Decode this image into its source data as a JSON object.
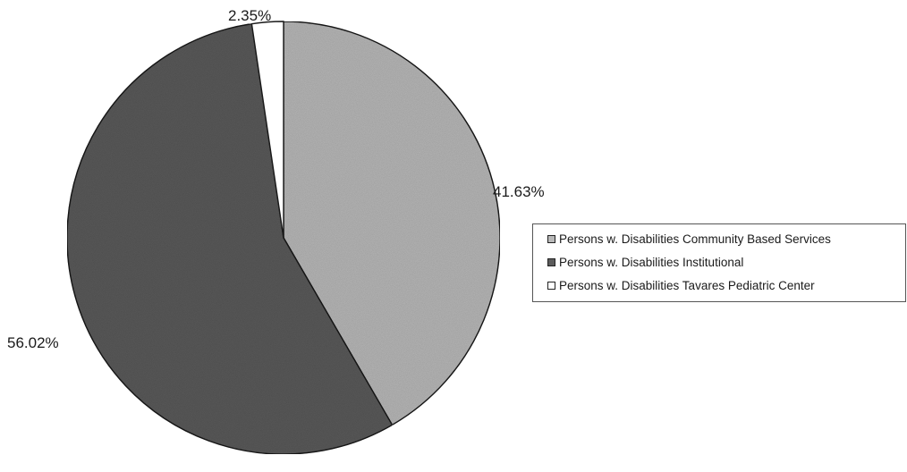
{
  "chart_data": {
    "type": "pie",
    "title": "",
    "slices": [
      {
        "label": "Persons w. Disabilities Community Based Services",
        "value": 41.63,
        "value_label": "41.63%",
        "color": "#b9b9b9"
      },
      {
        "label": "Persons w. Disabilities Institutional",
        "value": 56.02,
        "value_label": "56.02%",
        "color": "#5c5c5c"
      },
      {
        "label": "Persons w. Disabilities Tavares Pediatric Center",
        "value": 2.35,
        "value_label": "2.35%",
        "color": "#ffffff"
      }
    ],
    "start_angle": "12 o'clock",
    "direction": "clockwise",
    "legend_position": "right"
  }
}
